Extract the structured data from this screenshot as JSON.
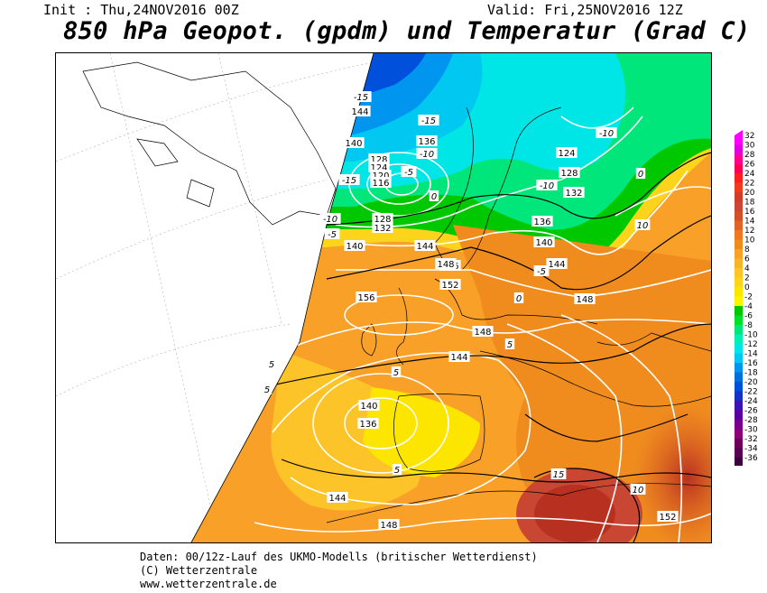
{
  "header": {
    "init": "Init : Thu,24NOV2016 00Z",
    "valid": "Valid: Fri,25NOV2016 12Z",
    "title": "850 hPa Geopot. (gpdm) und Temperatur (Grad C)"
  },
  "legend": {
    "ticks": [
      "32",
      "30",
      "28",
      "26",
      "24",
      "22",
      "20",
      "18",
      "16",
      "14",
      "12",
      "10",
      "8",
      "6",
      "4",
      "2",
      "0",
      "-2",
      "-4",
      "-6",
      "-8",
      "-10",
      "-12",
      "-14",
      "-16",
      "-18",
      "-20",
      "-22",
      "-24",
      "-26",
      "-28",
      "-30",
      "-32",
      "-34",
      "-36"
    ],
    "colors": [
      "#ff00ff",
      "#e000e0",
      "#ff0090",
      "#ff0050",
      "#ff1e1e",
      "#f03c1e",
      "#d23c28",
      "#c84632",
      "#d25028",
      "#e06428",
      "#f07820",
      "#f08c1e",
      "#f8a028",
      "#f8b428",
      "#fcc428",
      "#fcd41c",
      "#fce600",
      "#fcf400",
      "#00c800",
      "#00e028",
      "#00e67a",
      "#00f0b4",
      "#00e6e6",
      "#00c8f0",
      "#0096f0",
      "#006edc",
      "#0050dc",
      "#1432c8",
      "#3c14b4",
      "#5a00a0",
      "#78008c",
      "#8c0078",
      "#6e005a",
      "#5a0050",
      "#3c003c"
    ]
  },
  "map": {
    "geopotential_labels": [
      "144",
      "140",
      "136",
      "128",
      "124",
      "120",
      "116",
      "128",
      "132",
      "140",
      "136",
      "124",
      "128",
      "132",
      "136",
      "140",
      "144",
      "144",
      "148",
      "152",
      "148",
      "156",
      "148",
      "144",
      "140",
      "136",
      "144",
      "148",
      "152"
    ],
    "temperature_labels": [
      "-15",
      "-15",
      "-10",
      "-15",
      "-5",
      "0",
      "-10",
      "-5",
      "-10",
      "-10",
      "0",
      "-5",
      "0",
      "10",
      "5",
      "5",
      "5",
      "5",
      "5",
      "15",
      "10"
    ]
  },
  "footer": {
    "line1": "Daten: 00/12z-Lauf des UKMO-Modells (britischer Wetterdienst)",
    "line2": "(C) Wetterzentrale",
    "line3": "www.wetterzentrale.de"
  }
}
